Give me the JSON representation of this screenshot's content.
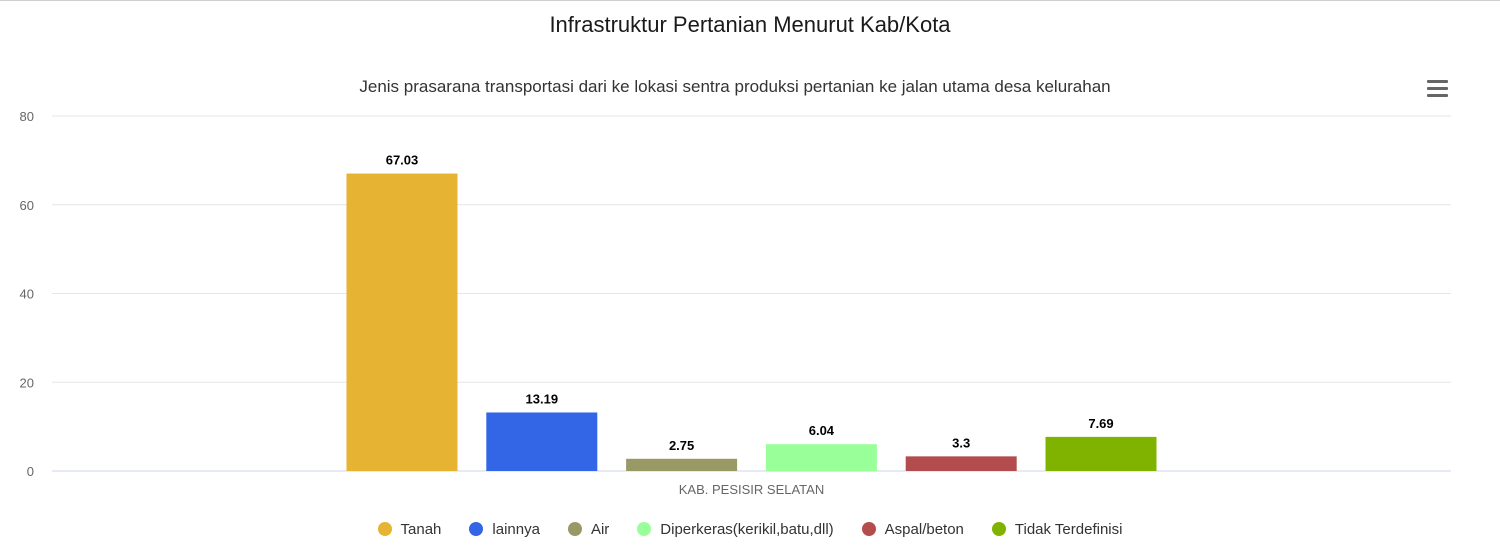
{
  "header": {
    "title": "Infrastruktur Pertanian Menurut Kab/Kota",
    "subtitle": "Jenis prasarana transportasi dari ke lokasi sentra produksi pertanian ke jalan utama desa kelurahan"
  },
  "menu": {
    "icon": "hamburger-menu-icon"
  },
  "chart_data": {
    "type": "bar",
    "title": "Infrastruktur Pertanian Menurut Kab/Kota",
    "subtitle": "Jenis prasarana transportasi dari ke lokasi sentra produksi pertanian ke jalan utama desa kelurahan",
    "categories": [
      "KAB. PESISIR SELATAN"
    ],
    "series": [
      {
        "name": "Tanah",
        "values": [
          67.03
        ],
        "label": "67.03",
        "color": "#e6b333"
      },
      {
        "name": "lainnya",
        "values": [
          13.19
        ],
        "label": "13.19",
        "color": "#3366e6"
      },
      {
        "name": "Air",
        "values": [
          2.75
        ],
        "label": "2.75",
        "color": "#999966"
      },
      {
        "name": "Diperkeras(kerikil,batu,dll)",
        "values": [
          6.04
        ],
        "label": "6.04",
        "color": "#99ff99"
      },
      {
        "name": "Aspal/beton",
        "values": [
          3.3
        ],
        "label": "3.3",
        "color": "#b34d4d"
      },
      {
        "name": "Tidak Terdefinisi",
        "values": [
          7.69
        ],
        "label": "7.69",
        "color": "#80b300"
      }
    ],
    "yticks": [
      "0",
      "20",
      "40",
      "60",
      "80"
    ],
    "ylim": [
      0,
      80
    ],
    "xlabel": "",
    "ylabel": "",
    "grid": true,
    "legend_position": "bottom"
  }
}
